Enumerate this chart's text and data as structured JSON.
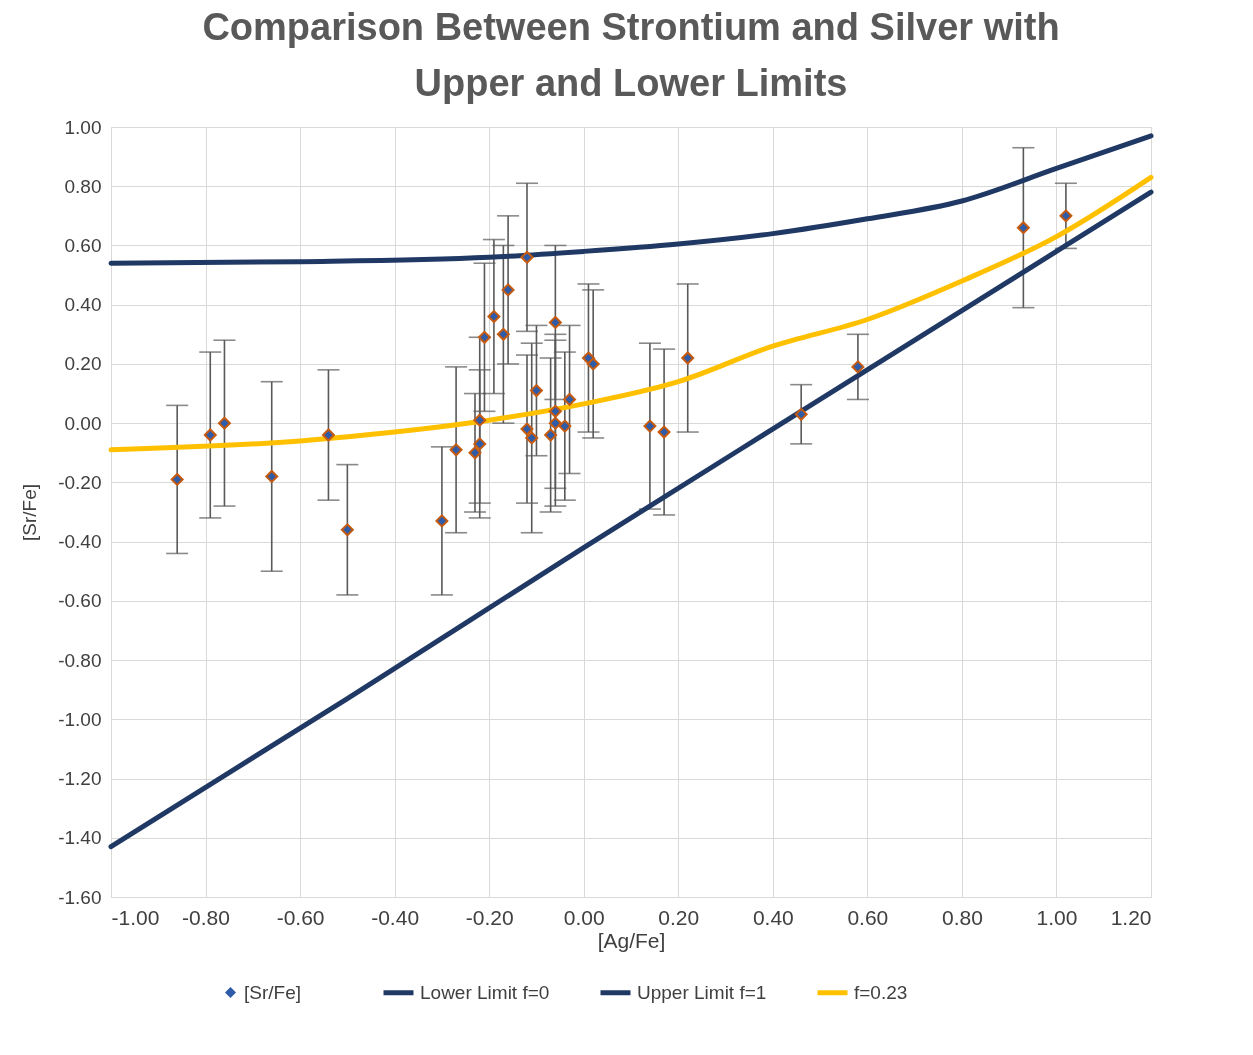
{
  "chart_data": {
    "type": "scatter",
    "title": "Comparison Between Strontium and Silver with Upper and Lower Limits",
    "xlabel": "[Ag/Fe]",
    "ylabel": "[Sr/Fe]",
    "xlim": [
      -1,
      1.2
    ],
    "ylim": [
      -1.6,
      1
    ],
    "xticks": [
      {
        "value": -1,
        "label": "-1.00"
      },
      {
        "value": -0.8,
        "label": "-0.80"
      },
      {
        "value": -0.6,
        "label": "-0.60"
      },
      {
        "value": -0.4,
        "label": "-0.40"
      },
      {
        "value": -0.2,
        "label": "-0.20"
      },
      {
        "value": 0,
        "label": "0.00"
      },
      {
        "value": 0.2,
        "label": "0.20"
      },
      {
        "value": 0.4,
        "label": "0.40"
      },
      {
        "value": 0.6,
        "label": "0.60"
      },
      {
        "value": 0.8,
        "label": "0.80"
      },
      {
        "value": 1,
        "label": "1.00"
      },
      {
        "value": 1.2,
        "label": "1.20"
      }
    ],
    "yticks": [
      {
        "value": -1.6,
        "label": "-1.60"
      },
      {
        "value": -1.4,
        "label": "-1.40"
      },
      {
        "value": -1.2,
        "label": "-1.20"
      },
      {
        "value": -1,
        "label": "-1.00"
      },
      {
        "value": -0.8,
        "label": "-0.80"
      },
      {
        "value": -0.6,
        "label": "-0.60"
      },
      {
        "value": -0.4,
        "label": "-0.40"
      },
      {
        "value": -0.2,
        "label": "-0.20"
      },
      {
        "value": 0,
        "label": "0.00"
      },
      {
        "value": 0.2,
        "label": "0.20"
      },
      {
        "value": 0.4,
        "label": "0.40"
      },
      {
        "value": 0.6,
        "label": "0.60"
      },
      {
        "value": 0.8,
        "label": "0.80"
      },
      {
        "value": 1,
        "label": "1.00"
      }
    ],
    "grid": true,
    "legend": "bottom",
    "series": [
      {
        "name": "[Sr/Fe]",
        "marker": "diamond",
        "color": "#2e5ca8",
        "x": [
          -0.86,
          -0.79,
          -0.76,
          -0.66,
          -0.54,
          -0.5,
          -0.3,
          -0.27,
          -0.23,
          -0.22,
          -0.22,
          -0.21,
          -0.19,
          -0.17,
          -0.16,
          -0.12,
          -0.12,
          -0.11,
          -0.1,
          -0.07,
          -0.06,
          -0.06,
          -0.06,
          -0.04,
          -0.03,
          0.01,
          0.02,
          0.14,
          0.17,
          0.22,
          0.46,
          0.58,
          0.93,
          1.02
        ],
        "values": [
          -0.19,
          -0.04,
          0,
          -0.18,
          -0.04,
          -0.36,
          -0.33,
          -0.09,
          -0.1,
          -0.07,
          0.01,
          0.29,
          0.36,
          0.3,
          0.45,
          0.56,
          -0.02,
          -0.05,
          0.11,
          -0.04,
          0.34,
          0.04,
          0,
          -0.01,
          0.08,
          0.22,
          0.2,
          -0.01,
          -0.03,
          0.22,
          0.03,
          0.19,
          0.66,
          0.7
        ],
        "errors": [
          0.25,
          0.28,
          0.28,
          0.32,
          0.22,
          0.22,
          0.25,
          0.28,
          0.2,
          0.25,
          0.28,
          0.25,
          0.26,
          0.3,
          0.25,
          0.25,
          0.25,
          0.32,
          0.22,
          0.26,
          0.26,
          0.26,
          0.28,
          0.25,
          0.25,
          0.25,
          0.25,
          0.28,
          0.28,
          0.25,
          0.1,
          0.11,
          0.27,
          0.11
        ]
      },
      {
        "name": "Lower Limit f=0",
        "type": "line",
        "marker": "none",
        "color": "#1f3864",
        "x": [
          -1,
          -0.5,
          0,
          0.5,
          1,
          1.2
        ],
        "values": [
          -1.43,
          -0.93,
          -0.42,
          0.08,
          0.58,
          0.78
        ]
      },
      {
        "name": "Upper Limit f=1",
        "type": "line",
        "marker": "none",
        "color": "#1f3864",
        "x": [
          -1,
          -0.6,
          -0.2,
          0,
          0.2,
          0.4,
          0.6,
          0.8,
          1,
          1.2
        ],
        "values": [
          0.54,
          0.545,
          0.56,
          0.58,
          0.605,
          0.64,
          0.69,
          0.75,
          0.86,
          0.97
        ]
      },
      {
        "name": "f=0.23",
        "type": "line",
        "marker": "none",
        "color": "#ffc000",
        "x": [
          -1,
          -0.6,
          -0.4,
          -0.2,
          0,
          0.2,
          0.4,
          0.6,
          0.8,
          1,
          1.2
        ],
        "values": [
          -0.09,
          -0.06,
          -0.03,
          0.01,
          0.065,
          0.14,
          0.26,
          0.35,
          0.48,
          0.63,
          0.83
        ]
      }
    ]
  }
}
